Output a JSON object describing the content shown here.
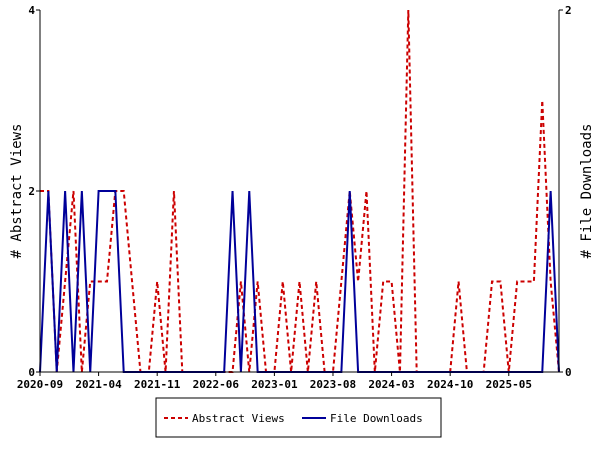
{
  "chart_data": {
    "type": "line",
    "x_ticks": [
      "2020-09",
      "2021-04",
      "2021-11",
      "2022-06",
      "2023-01",
      "2023-08",
      "2024-03",
      "2024-10",
      "2025-05"
    ],
    "y_left": {
      "label": "# Abstract Views",
      "ticks": [
        "0",
        "2",
        "4"
      ],
      "range": [
        0,
        4
      ]
    },
    "y_right": {
      "label": "# File Downloads",
      "ticks": [
        "0",
        "2"
      ],
      "range": [
        0,
        2
      ]
    },
    "x_range": [
      "2020-09",
      "2025-11"
    ],
    "grid": false,
    "legend_position": "bottom",
    "series": [
      {
        "name": "Abstract Views",
        "axis": "left",
        "color": "#cc0000",
        "style": "dashed",
        "x": [
          "2020-09",
          "2020-10",
          "2020-11",
          "2020-12",
          "2021-01",
          "2021-02",
          "2021-03",
          "2021-04",
          "2021-05",
          "2021-06",
          "2021-07",
          "2021-08",
          "2021-09",
          "2021-10",
          "2021-11",
          "2021-12",
          "2022-01",
          "2022-02",
          "2022-03",
          "2022-04",
          "2022-05",
          "2022-06",
          "2022-07",
          "2022-08",
          "2022-09",
          "2022-10",
          "2022-11",
          "2022-12",
          "2023-01",
          "2023-02",
          "2023-03",
          "2023-04",
          "2023-05",
          "2023-06",
          "2023-07",
          "2023-08",
          "2023-09",
          "2023-10",
          "2023-11",
          "2023-12",
          "2024-01",
          "2024-02",
          "2024-03",
          "2024-04",
          "2024-05",
          "2024-06",
          "2024-07",
          "2024-08",
          "2024-09",
          "2024-10",
          "2024-11",
          "2024-12",
          "2025-01",
          "2025-02",
          "2025-03",
          "2025-04",
          "2025-05",
          "2025-06",
          "2025-07",
          "2025-08",
          "2025-09",
          "2025-10",
          "2025-11"
        ],
        "values": [
          2,
          2,
          0,
          1,
          2,
          0,
          1,
          1,
          1,
          2,
          2,
          1,
          0,
          0,
          1,
          0,
          2,
          0,
          0,
          0,
          0,
          0,
          0,
          0,
          1,
          0,
          1,
          0,
          0,
          1,
          0,
          1,
          0,
          1,
          0,
          0,
          1,
          2,
          1,
          2,
          0,
          1,
          1,
          0,
          4,
          0,
          0,
          0,
          0,
          0,
          1,
          0,
          0,
          0,
          1,
          1,
          0,
          1,
          1,
          1,
          3,
          1,
          0
        ]
      },
      {
        "name": "File Downloads",
        "axis": "right",
        "color": "#000099",
        "style": "solid",
        "x": [
          "2020-09",
          "2020-10",
          "2020-11",
          "2020-12",
          "2021-01",
          "2021-02",
          "2021-03",
          "2021-04",
          "2021-05",
          "2021-06",
          "2021-07",
          "2021-08",
          "2021-09",
          "2021-10",
          "2021-11",
          "2021-12",
          "2022-01",
          "2022-02",
          "2022-03",
          "2022-04",
          "2022-05",
          "2022-06",
          "2022-07",
          "2022-08",
          "2022-09",
          "2022-10",
          "2022-11",
          "2022-12",
          "2023-01",
          "2023-02",
          "2023-03",
          "2023-04",
          "2023-05",
          "2023-06",
          "2023-07",
          "2023-08",
          "2023-09",
          "2023-10",
          "2023-11",
          "2023-12",
          "2024-01",
          "2024-02",
          "2024-03",
          "2024-04",
          "2024-05",
          "2024-06",
          "2024-07",
          "2024-08",
          "2024-09",
          "2024-10",
          "2024-11",
          "2024-12",
          "2025-01",
          "2025-02",
          "2025-03",
          "2025-04",
          "2025-05",
          "2025-06",
          "2025-07",
          "2025-08",
          "2025-09",
          "2025-10",
          "2025-11"
        ],
        "values": [
          0,
          1,
          0,
          1,
          0,
          1,
          0,
          1,
          1,
          1,
          0,
          0,
          0,
          0,
          0,
          0,
          0,
          0,
          0,
          0,
          0,
          0,
          0,
          1,
          0,
          1,
          0,
          0,
          0,
          0,
          0,
          0,
          0,
          0,
          0,
          0,
          0,
          1,
          0,
          0,
          0,
          0,
          0,
          0,
          0,
          0,
          0,
          0,
          0,
          0,
          0,
          0,
          0,
          0,
          0,
          0,
          0,
          0,
          0,
          0,
          0,
          1,
          0
        ]
      }
    ]
  }
}
